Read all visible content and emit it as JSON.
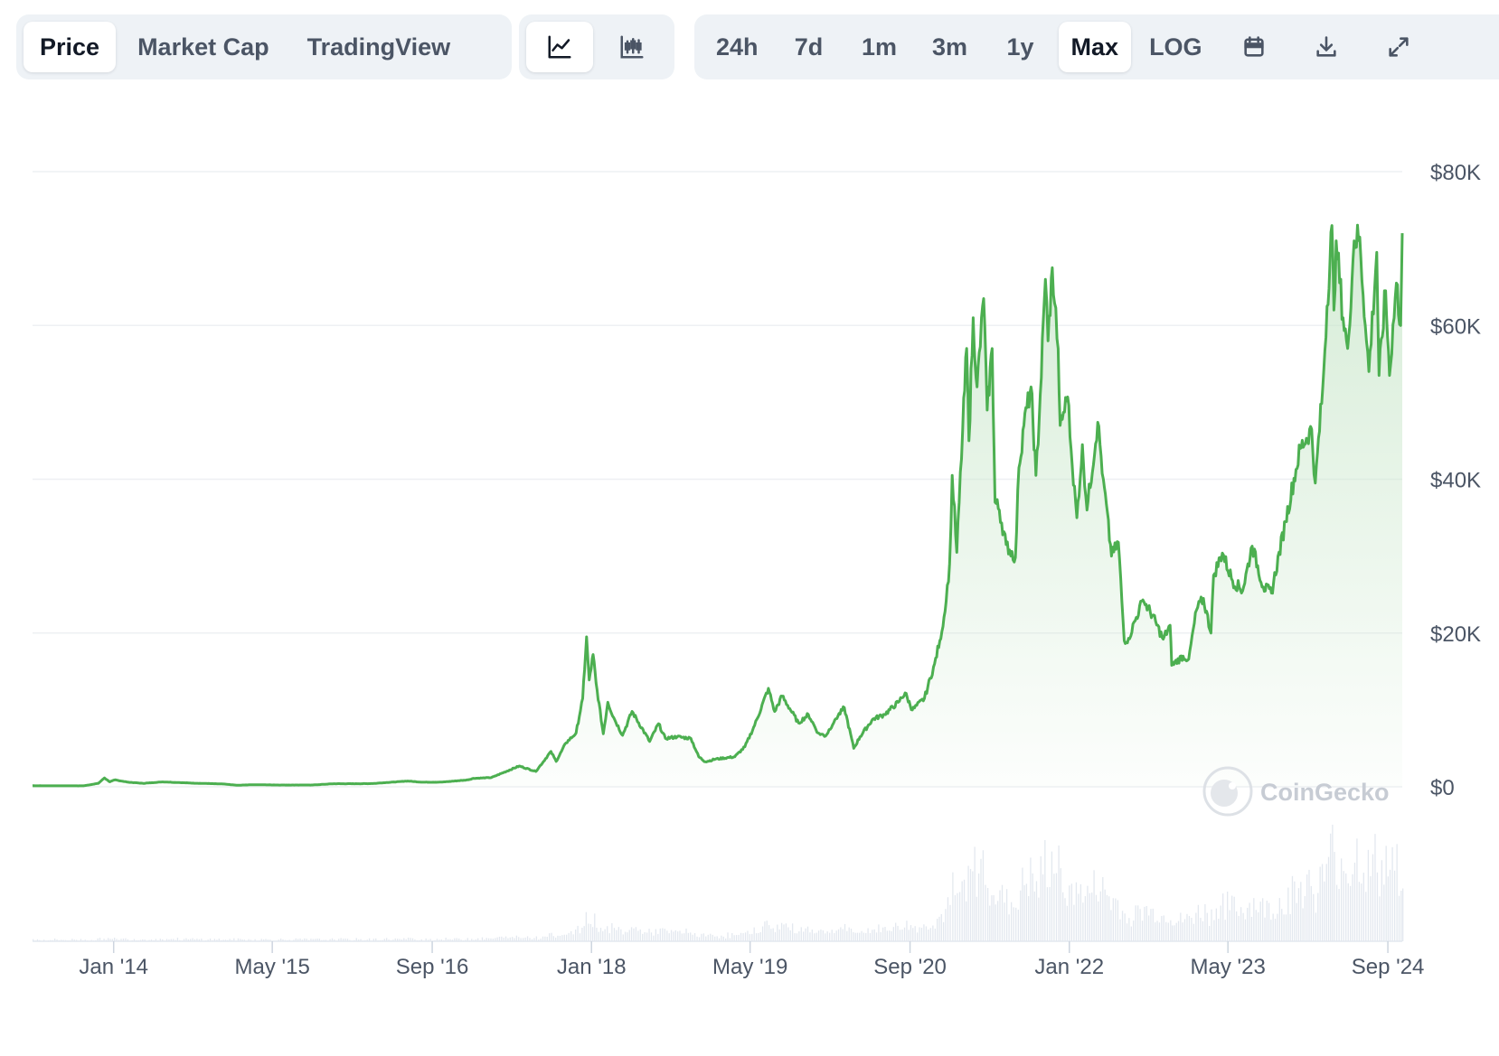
{
  "toolbar": {
    "views": [
      {
        "label": "Price",
        "active": true
      },
      {
        "label": "Market Cap",
        "active": false
      },
      {
        "label": "TradingView",
        "active": false
      }
    ],
    "chart_types": [
      {
        "icon": "line-chart-icon",
        "active": true
      },
      {
        "icon": "candlestick-chart-icon",
        "active": false
      }
    ],
    "ranges": [
      {
        "label": "24h",
        "active": false
      },
      {
        "label": "7d",
        "active": false
      },
      {
        "label": "1m",
        "active": false
      },
      {
        "label": "3m",
        "active": false
      },
      {
        "label": "1y",
        "active": false
      },
      {
        "label": "Max",
        "active": true
      },
      {
        "label": "LOG",
        "active": false
      }
    ],
    "actions": [
      "calendar-icon",
      "download-icon",
      "expand-icon"
    ]
  },
  "watermark": "CoinGecko",
  "colors": {
    "line": "#4caf50",
    "area_top": "#c8e6c9",
    "volume": "#e3e8ef",
    "grid": "#eef0f3",
    "axis_text": "#4b5565"
  },
  "chart_data": {
    "type": "area",
    "price_axis_labels": [
      "$0",
      "$20K",
      "$40K",
      "$60K",
      "$80K"
    ],
    "ylim": [
      0,
      80000
    ],
    "x_tick_labels": [
      "Jan '14",
      "May '15",
      "Sep '16",
      "Jan '18",
      "May '19",
      "Sep '20",
      "Jan '22",
      "May '23",
      "Sep '24"
    ],
    "x_tick_dates": [
      "2014-01-01",
      "2015-05-01",
      "2016-09-01",
      "2018-01-01",
      "2019-05-01",
      "2020-09-01",
      "2022-01-01",
      "2023-05-01",
      "2024-09-01"
    ],
    "xlim": [
      "2013-04-28",
      "2024-10-15"
    ],
    "grid": true,
    "series": [
      {
        "points": [
          [
            "2013-04-28",
            135
          ],
          [
            "2013-10-01",
            125
          ],
          [
            "2013-11-15",
            450
          ],
          [
            "2013-12-04",
            1150
          ],
          [
            "2013-12-20",
            650
          ],
          [
            "2014-01-05",
            900
          ],
          [
            "2014-02-15",
            600
          ],
          [
            "2014-04-01",
            450
          ],
          [
            "2014-06-01",
            640
          ],
          [
            "2014-09-01",
            480
          ],
          [
            "2014-12-01",
            370
          ],
          [
            "2015-01-15",
            200
          ],
          [
            "2015-03-01",
            270
          ],
          [
            "2015-06-01",
            230
          ],
          [
            "2015-09-01",
            235
          ],
          [
            "2015-11-05",
            400
          ],
          [
            "2016-01-15",
            400
          ],
          [
            "2016-03-01",
            420
          ],
          [
            "2016-06-18",
            750
          ],
          [
            "2016-08-01",
            600
          ],
          [
            "2016-10-01",
            610
          ],
          [
            "2016-12-20",
            900
          ],
          [
            "2017-01-04",
            1100
          ],
          [
            "2017-03-01",
            1200
          ],
          [
            "2017-05-25",
            2700
          ],
          [
            "2017-07-15",
            2000
          ],
          [
            "2017-08-30",
            4600
          ],
          [
            "2017-09-15",
            3300
          ],
          [
            "2017-10-15",
            5700
          ],
          [
            "2017-11-15",
            7000
          ],
          [
            "2017-12-05",
            11500
          ],
          [
            "2017-12-17",
            19500
          ],
          [
            "2017-12-25",
            13900
          ],
          [
            "2018-01-06",
            17200
          ],
          [
            "2018-01-15",
            13500
          ],
          [
            "2018-02-06",
            6900
          ],
          [
            "2018-02-20",
            11000
          ],
          [
            "2018-03-10",
            9000
          ],
          [
            "2018-04-06",
            6700
          ],
          [
            "2018-05-05",
            9800
          ],
          [
            "2018-06-28",
            5900
          ],
          [
            "2018-07-25",
            8200
          ],
          [
            "2018-08-15",
            6300
          ],
          [
            "2018-09-20",
            6500
          ],
          [
            "2018-11-01",
            6300
          ],
          [
            "2018-11-25",
            3900
          ],
          [
            "2018-12-15",
            3250
          ],
          [
            "2019-01-15",
            3600
          ],
          [
            "2019-03-15",
            3900
          ],
          [
            "2019-04-15",
            5200
          ],
          [
            "2019-05-15",
            8000
          ],
          [
            "2019-06-26",
            12800
          ],
          [
            "2019-07-15",
            9800
          ],
          [
            "2019-08-07",
            11800
          ],
          [
            "2019-09-26",
            8300
          ],
          [
            "2019-10-26",
            9400
          ],
          [
            "2019-11-25",
            7000
          ],
          [
            "2019-12-18",
            6600
          ],
          [
            "2020-01-15",
            8700
          ],
          [
            "2020-02-13",
            10300
          ],
          [
            "2020-03-13",
            5000
          ],
          [
            "2020-04-01",
            6500
          ],
          [
            "2020-05-10",
            8800
          ],
          [
            "2020-06-15",
            9400
          ],
          [
            "2020-07-27",
            11000
          ],
          [
            "2020-08-17",
            12200
          ],
          [
            "2020-09-08",
            10000
          ],
          [
            "2020-10-15",
            11500
          ],
          [
            "2020-11-15",
            16000
          ],
          [
            "2020-12-01",
            19000
          ],
          [
            "2020-12-17",
            22800
          ],
          [
            "2020-12-31",
            29000
          ],
          [
            "2021-01-08",
            40500
          ],
          [
            "2021-01-22",
            30500
          ],
          [
            "2021-02-09",
            46500
          ],
          [
            "2021-02-21",
            57000
          ],
          [
            "2021-02-28",
            45000
          ],
          [
            "2021-03-13",
            61000
          ],
          [
            "2021-03-25",
            52000
          ],
          [
            "2021-04-14",
            63500
          ],
          [
            "2021-04-25",
            49000
          ],
          [
            "2021-05-10",
            57000
          ],
          [
            "2021-05-19",
            37000
          ],
          [
            "2021-06-01",
            36000
          ],
          [
            "2021-06-22",
            31500
          ],
          [
            "2021-07-20",
            29800
          ],
          [
            "2021-07-31",
            41500
          ],
          [
            "2021-08-15",
            47000
          ],
          [
            "2021-09-06",
            52000
          ],
          [
            "2021-09-21",
            40500
          ],
          [
            "2021-10-01",
            48000
          ],
          [
            "2021-10-20",
            66000
          ],
          [
            "2021-10-28",
            58000
          ],
          [
            "2021-11-10",
            67500
          ],
          [
            "2021-11-28",
            57000
          ],
          [
            "2021-12-04",
            47000
          ],
          [
            "2021-12-27",
            50700
          ],
          [
            "2022-01-10",
            41700
          ],
          [
            "2022-01-24",
            35000
          ],
          [
            "2022-02-10",
            44500
          ],
          [
            "2022-02-24",
            36000
          ],
          [
            "2022-03-29",
            47400
          ],
          [
            "2022-04-15",
            40000
          ],
          [
            "2022-05-10",
            30000
          ],
          [
            "2022-05-31",
            31800
          ],
          [
            "2022-06-18",
            19000
          ],
          [
            "2022-07-01",
            19300
          ],
          [
            "2022-08-14",
            24300
          ],
          [
            "2022-09-12",
            22300
          ],
          [
            "2022-10-15",
            19200
          ],
          [
            "2022-11-05",
            21000
          ],
          [
            "2022-11-10",
            15800
          ],
          [
            "2022-12-15",
            17000
          ],
          [
            "2023-01-01",
            16600
          ],
          [
            "2023-01-25",
            23000
          ],
          [
            "2023-02-15",
            24500
          ],
          [
            "2023-03-10",
            20000
          ],
          [
            "2023-03-18",
            27500
          ],
          [
            "2023-04-14",
            30400
          ],
          [
            "2023-05-15",
            26800
          ],
          [
            "2023-06-15",
            25500
          ],
          [
            "2023-07-14",
            31300
          ],
          [
            "2023-08-17",
            26000
          ],
          [
            "2023-09-11",
            25200
          ],
          [
            "2023-10-24",
            34500
          ],
          [
            "2023-12-08",
            44000
          ],
          [
            "2024-01-12",
            46500
          ],
          [
            "2024-01-23",
            39500
          ],
          [
            "2024-02-15",
            52000
          ],
          [
            "2024-02-28",
            62500
          ],
          [
            "2024-03-14",
            73000
          ],
          [
            "2024-03-20",
            62000
          ],
          [
            "2024-03-27",
            71000
          ],
          [
            "2024-04-17",
            61000
          ],
          [
            "2024-05-01",
            57000
          ],
          [
            "2024-05-21",
            71000
          ],
          [
            "2024-06-07",
            71500
          ],
          [
            "2024-06-24",
            60000
          ],
          [
            "2024-07-05",
            54000
          ],
          [
            "2024-07-29",
            69500
          ],
          [
            "2024-08-05",
            53500
          ],
          [
            "2024-08-25",
            64500
          ],
          [
            "2024-09-06",
            53500
          ],
          [
            "2024-09-27",
            65500
          ],
          [
            "2024-10-10",
            60000
          ],
          [
            "2024-10-15",
            72000
          ]
        ]
      }
    ]
  }
}
